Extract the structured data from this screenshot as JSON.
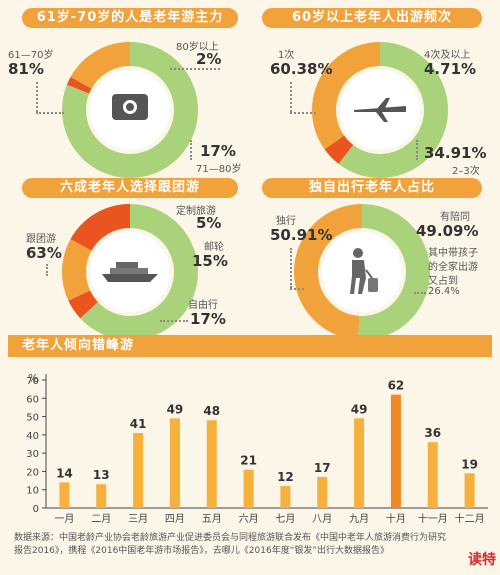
{
  "panels": {
    "age": {
      "title": "61岁-70岁的人是老年游主力",
      "slices": [
        {
          "label": "61—70岁",
          "value": "81%",
          "pct": 81,
          "color": "#a9d27a"
        },
        {
          "label": "80岁以上",
          "value": "2%",
          "pct": 2,
          "color": "#e9541f"
        },
        {
          "label": "71—80岁",
          "value": "17%",
          "pct": 17,
          "color": "#f2a23a"
        }
      ],
      "icon": "camera-icon"
    },
    "freq": {
      "title": "60岁以上老年人出游频次",
      "slices": [
        {
          "label": "1次",
          "value": "60.38%",
          "pct": 60.38,
          "color": "#a9d27a"
        },
        {
          "label": "4次及以上",
          "value": "4.71%",
          "pct": 4.71,
          "color": "#e9541f"
        },
        {
          "label": "2–3次",
          "value": "34.91%",
          "pct": 34.91,
          "color": "#f2a23a"
        }
      ],
      "icon": "airplane-icon"
    },
    "group": {
      "title": "六成老年人选择跟团游",
      "slices": [
        {
          "label": "跟团游",
          "value": "63%",
          "pct": 63,
          "color": "#a9d27a"
        },
        {
          "label": "定制旅游",
          "value": "5%",
          "pct": 5,
          "color": "#e9541f"
        },
        {
          "label": "邮轮",
          "value": "15%",
          "pct": 15,
          "color": "#f2a23a"
        },
        {
          "label": "自由行",
          "value": "17%",
          "pct": 17,
          "color": "#e9541f"
        }
      ],
      "icon": "cruise-ship-icon"
    },
    "solo": {
      "title": "独自出行老年人占比",
      "slices": [
        {
          "label": "独行",
          "value": "50.91%",
          "pct": 50.91,
          "color": "#a9d27a"
        },
        {
          "label": "有陪同",
          "value": "49.09%",
          "pct": 49.09,
          "color": "#f2a23a"
        }
      ],
      "note": [
        "其中带孩子",
        "的全家出游",
        "又占到",
        "26.4%"
      ],
      "icon": "traveler-icon"
    }
  },
  "chart_data": {
    "type": "bar",
    "title": "老年人倾向错峰游",
    "ylabel": "%",
    "ylim": [
      0,
      70
    ],
    "yticks": [
      0,
      10,
      20,
      30,
      40,
      50,
      60,
      70
    ],
    "categories": [
      "一月",
      "二月",
      "三月",
      "四月",
      "五月",
      "六月",
      "七月",
      "八月",
      "九月",
      "十月",
      "十一月",
      "十二月"
    ],
    "values": [
      14,
      13,
      41,
      49,
      48,
      21,
      12,
      17,
      49,
      62,
      36,
      19
    ],
    "highlight_index": 9,
    "colors": {
      "bar": "#f5b13c",
      "highlight": "#f08a24"
    }
  },
  "source_text": "数据来源：中国老龄产业协会老龄旅游产业促进委员会与同程旅游联合发布《中国中老年人旅游消费行为研究报告2016》，携程《2016中国老年游市场报告》，去哪儿《2016年度“银发”出行大数据报告》",
  "brand": "读特"
}
